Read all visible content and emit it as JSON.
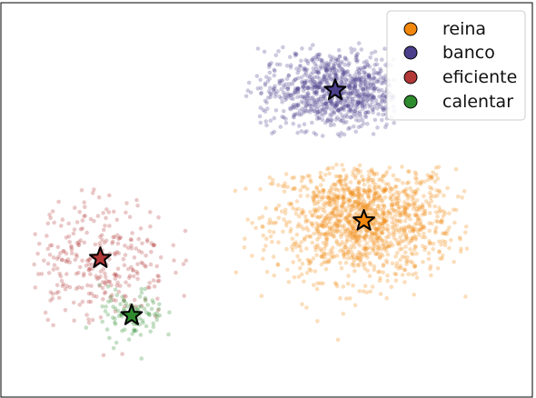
{
  "chart_data": {
    "type": "scatter",
    "title": "",
    "xlabel": "",
    "ylabel": "",
    "xlim": [
      0,
      100
    ],
    "ylim": [
      0,
      100
    ],
    "grid": false,
    "axes_ticks": false,
    "legend": {
      "placement": "top-right"
    },
    "series": [
      {
        "name": "reina",
        "color": "#f2870d",
        "count": 1300,
        "centroid": [
          68.3,
          44.7
        ],
        "spread": [
          8.5,
          7.5
        ],
        "bounds_x": [
          44,
          88
        ],
        "bounds_y": [
          6,
          59
        ]
      },
      {
        "name": "banco",
        "color": "#4b3f8c",
        "count": 900,
        "centroid": [
          62.9,
          77.8
        ],
        "spread": [
          7.0,
          5.0
        ],
        "bounds_x": [
          46,
          74
        ],
        "bounds_y": [
          66,
          90
        ]
      },
      {
        "name": "eficiente",
        "color": "#b33838",
        "count": 300,
        "centroid": [
          18.7,
          35.2
        ],
        "spread": [
          6.5,
          8.0
        ],
        "bounds_x": [
          6,
          35
        ],
        "bounds_y": [
          6,
          53
        ]
      },
      {
        "name": "calentar",
        "color": "#2e8b2e",
        "count": 100,
        "centroid": [
          24.6,
          20.7
        ],
        "spread": [
          3.0,
          3.5
        ],
        "bounds_x": [
          16,
          38
        ],
        "bounds_y": [
          9,
          35
        ]
      }
    ]
  }
}
